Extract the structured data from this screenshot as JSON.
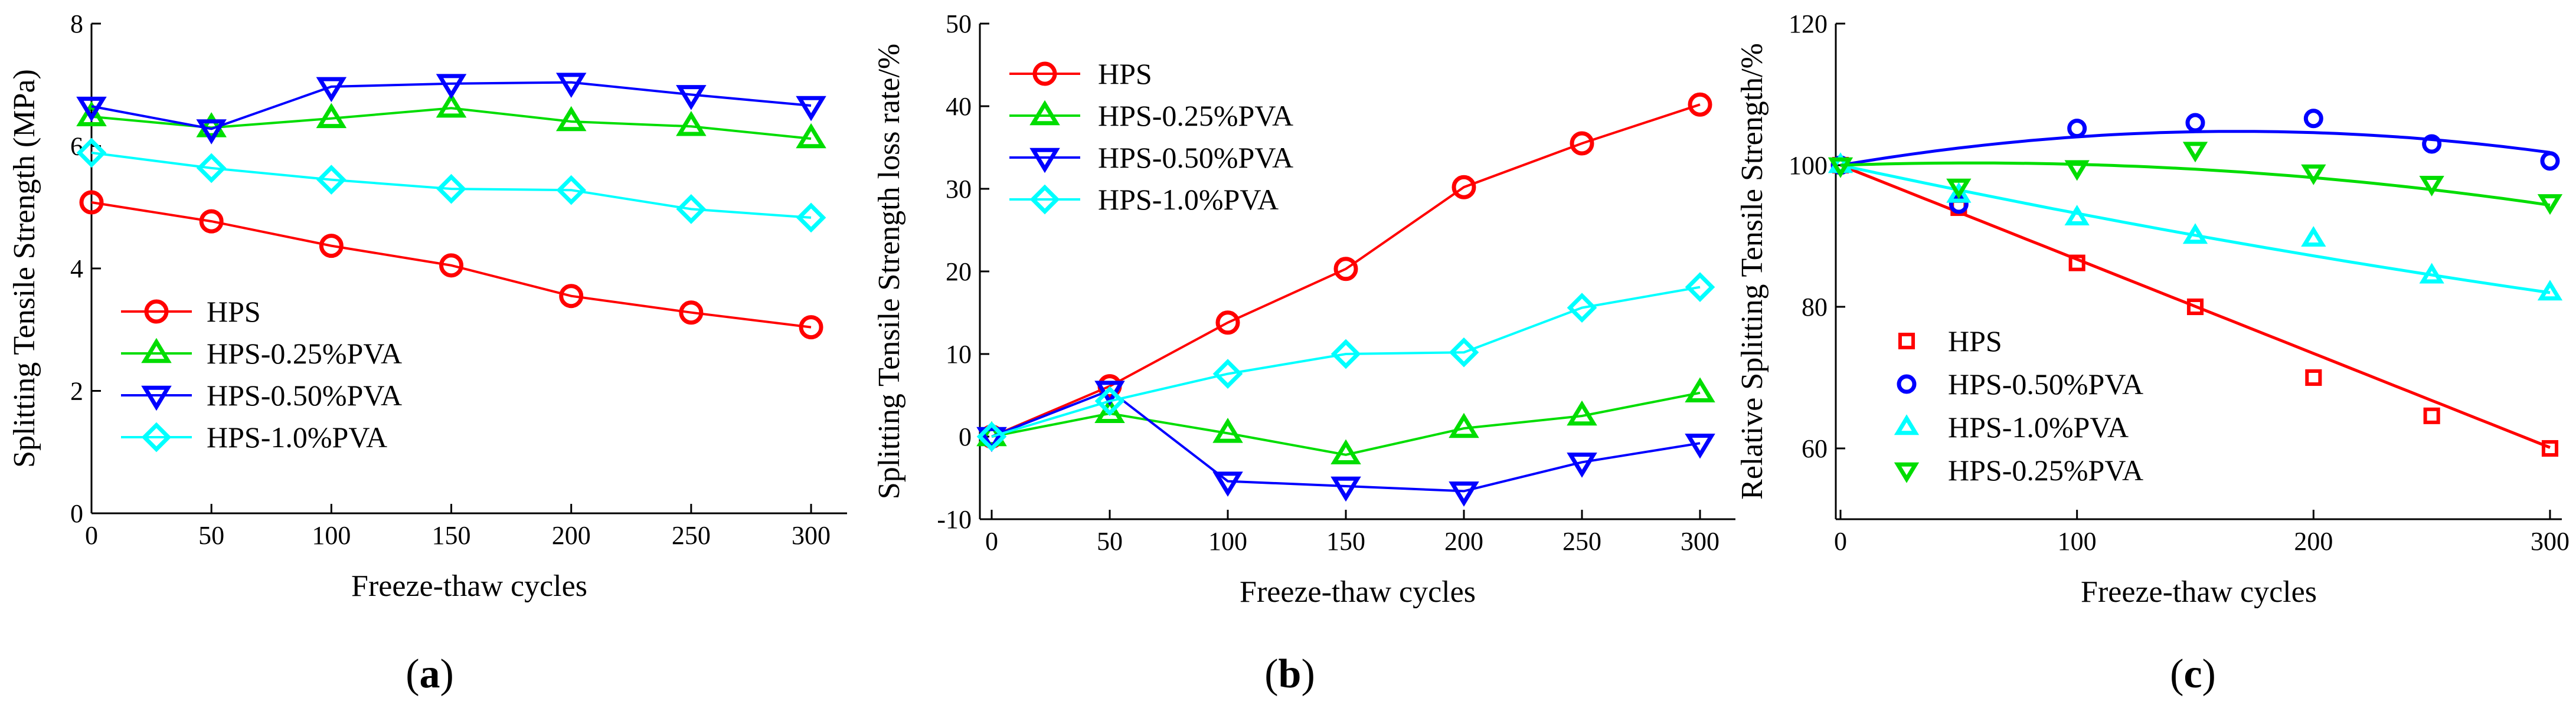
{
  "chart_data": [
    {
      "panel": "a",
      "caption": "a",
      "type": "line",
      "xlabel": "Freeze-thaw cycles",
      "ylabel": "Splitting Tensile Strength (MPa)",
      "xlim": [
        0,
        315
      ],
      "ylim": [
        0,
        8
      ],
      "xticks": [
        "0",
        "50",
        "100",
        "150",
        "200",
        "250",
        "300"
      ],
      "yticks": [
        "0",
        "2",
        "4",
        "6",
        "8"
      ],
      "legend_position": "bottom-left",
      "x": [
        0,
        50,
        100,
        150,
        200,
        250,
        300
      ],
      "series": [
        {
          "name": "HPS",
          "color": "#ff0000",
          "marker": "circle",
          "values": [
            5.08,
            4.77,
            4.37,
            4.05,
            3.55,
            3.28,
            3.04
          ]
        },
        {
          "name": "HPS-0.25%PVA",
          "color": "#00dd00",
          "marker": "triangle-up",
          "values": [
            6.48,
            6.3,
            6.45,
            6.62,
            6.4,
            6.32,
            6.12
          ]
        },
        {
          "name": "HPS-0.50%PVA",
          "color": "#0000ff",
          "marker": "triangle-down",
          "values": [
            6.65,
            6.28,
            6.97,
            7.02,
            7.04,
            6.84,
            6.66
          ]
        },
        {
          "name": "HPS-1.0%PVA",
          "color": "#00ffff",
          "marker": "diamond",
          "values": [
            5.89,
            5.64,
            5.45,
            5.3,
            5.28,
            4.97,
            4.83
          ]
        }
      ]
    },
    {
      "panel": "b",
      "caption": "b",
      "type": "line",
      "xlabel": "Freeze-thaw cycles",
      "ylabel": "Splitting Tensile Strength loss rate/%",
      "xlim": [
        -5,
        315
      ],
      "ylim": [
        -10,
        50
      ],
      "xticks": [
        "0",
        "50",
        "100",
        "150",
        "200",
        "250",
        "300"
      ],
      "yticks": [
        "-10",
        "0",
        "10",
        "20",
        "30",
        "40",
        "50"
      ],
      "legend_position": "top-left",
      "x": [
        0,
        50,
        100,
        150,
        200,
        250,
        300
      ],
      "series": [
        {
          "name": "HPS",
          "color": "#ff0000",
          "marker": "circle",
          "values": [
            0,
            6.1,
            13.8,
            20.3,
            30.2,
            35.5,
            40.2
          ]
        },
        {
          "name": "HPS-0.25%PVA",
          "color": "#00dd00",
          "marker": "triangle-up",
          "values": [
            0,
            2.8,
            0.4,
            -2.2,
            1.0,
            2.5,
            5.3
          ]
        },
        {
          "name": "HPS-0.50%PVA",
          "color": "#0000ff",
          "marker": "triangle-down",
          "values": [
            0,
            5.6,
            -5.4,
            -6.0,
            -6.6,
            -3.1,
            -0.8
          ]
        },
        {
          "name": "HPS-1.0%PVA",
          "color": "#00ffff",
          "marker": "diamond",
          "values": [
            0,
            4.3,
            7.6,
            10.0,
            10.2,
            15.6,
            18.1
          ]
        }
      ]
    },
    {
      "panel": "c",
      "caption": "c",
      "type": "scatter",
      "xlabel": "Freeze-thaw cycles",
      "ylabel": "Relative Splitting Tensile Strength/%",
      "xlim": [
        -2,
        305
      ],
      "ylim": [
        50,
        120
      ],
      "xticks": [
        "0",
        "100",
        "200",
        "300"
      ],
      "yticks": [
        "60",
        "80",
        "100",
        "120"
      ],
      "legend_position": "bottom-left",
      "x": [
        0,
        50,
        100,
        150,
        200,
        250,
        300
      ],
      "series": [
        {
          "name": "HPS",
          "color": "#ff0000",
          "marker": "square",
          "values": [
            100,
            94,
            86.2,
            80.0,
            70.0,
            64.6,
            60.0
          ],
          "fit": [
            100,
            -0.133,
            3e-07
          ]
        },
        {
          "name": "HPS-0.50%PVA",
          "color": "#0000ff",
          "marker": "circle",
          "values": [
            100,
            94.5,
            105.2,
            106.0,
            106.6,
            103.0,
            100.6
          ],
          "fit": [
            100,
            0.057,
            -0.00017
          ]
        },
        {
          "name": "HPS-1.0%PVA",
          "color": "#00ffff",
          "marker": "triangle-up",
          "values": [
            100,
            95.8,
            92.6,
            90.0,
            89.6,
            84.4,
            82.0
          ],
          "fit": [
            100,
            -0.072,
            4e-05
          ]
        },
        {
          "name": "HPS-0.25%PVA",
          "color": "#00dd00",
          "marker": "triangle-down",
          "values": [
            100,
            97.0,
            99.6,
            102.2,
            99.0,
            97.4,
            94.8
          ],
          "fit": [
            100,
            0.0112,
            -0.0001
          ]
        }
      ]
    }
  ]
}
